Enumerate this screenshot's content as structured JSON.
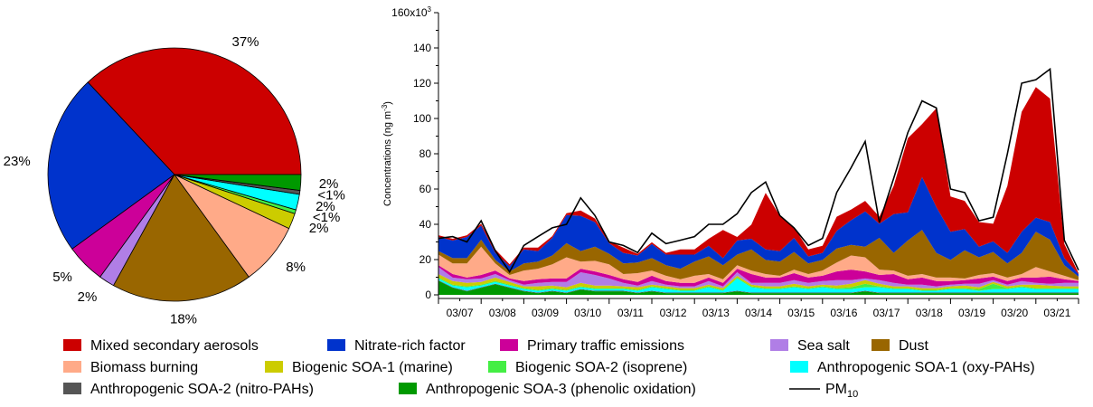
{
  "chart_data": [
    {
      "type": "pie",
      "slices": [
        {
          "name": "Mixed secondary aerosols",
          "value": 37,
          "label": "37%",
          "color": "#cc0000"
        },
        {
          "name": "Nitrate-rich factor",
          "value": 23,
          "label": "23%",
          "color": "#0033cc"
        },
        {
          "name": "Primary traffic emissions",
          "value": 5,
          "label": "5%",
          "color": "#cc0099"
        },
        {
          "name": "Sea salt",
          "value": 2,
          "label": "2%",
          "color": "#b07ee6"
        },
        {
          "name": "Dust",
          "value": 18,
          "label": "18%",
          "color": "#996600"
        },
        {
          "name": "Biomass burning",
          "value": 8,
          "label": "8%",
          "color": "#ffaa88"
        },
        {
          "name": "Biogenic SOA-1 (marine)",
          "value": 2,
          "label": "2%",
          "color": "#cccc00"
        },
        {
          "name": "Biogenic SOA-2 (isoprene)",
          "value": 0.5,
          "label": "<1%",
          "color": "#44ee44"
        },
        {
          "name": "Anthropogenic SOA-1 (oxy-PAHs)",
          "value": 2,
          "label": "2%",
          "color": "#00ffff"
        },
        {
          "name": "Anthropogenic SOA-2 (nitro-PAHs)",
          "value": 0.5,
          "label": "<1%",
          "color": "#555555"
        },
        {
          "name": "Anthropogenic SOA-3 (phenolic oxidation)",
          "value": 2,
          "label": "2%",
          "color": "#009900"
        }
      ]
    },
    {
      "type": "area",
      "stacked": true,
      "ylabel": "Concentrations (ng m",
      "ylabel_sup": "-3",
      "ylabel_end": ")",
      "ylim": [
        0,
        160000
      ],
      "yticks": [
        {
          "value": 0,
          "label": "0"
        },
        {
          "value": 20000,
          "label": "20"
        },
        {
          "value": 40000,
          "label": "40"
        },
        {
          "value": 60000,
          "label": "60"
        },
        {
          "value": 80000,
          "label": "80"
        },
        {
          "value": 100000,
          "label": "100"
        },
        {
          "value": 120000,
          "label": "120"
        },
        {
          "value": 140000,
          "label": "140"
        },
        {
          "value": 160000,
          "label": "160x10",
          "sup": "3"
        }
      ],
      "xlim": [
        0,
        90
      ],
      "xticks": [
        {
          "x": 3,
          "label": "03/07"
        },
        {
          "x": 9,
          "label": "03/08"
        },
        {
          "x": 15,
          "label": "03/09"
        },
        {
          "x": 21,
          "label": "03/10"
        },
        {
          "x": 27,
          "label": "03/11"
        },
        {
          "x": 33,
          "label": "03/12"
        },
        {
          "x": 39,
          "label": "03/13"
        },
        {
          "x": 45,
          "label": "03/14"
        },
        {
          "x": 51,
          "label": "03/15"
        },
        {
          "x": 57,
          "label": "03/16"
        },
        {
          "x": 63,
          "label": "03/17"
        },
        {
          "x": 69,
          "label": "03/18"
        },
        {
          "x": 75,
          "label": "03/19"
        },
        {
          "x": 81,
          "label": "03/20"
        },
        {
          "x": 87,
          "label": "03/21"
        }
      ],
      "x": [
        0,
        2,
        4,
        6,
        8,
        10,
        12,
        14,
        16,
        18,
        20,
        22,
        24,
        26,
        28,
        30,
        32,
        34,
        36,
        38,
        40,
        42,
        44,
        46,
        48,
        50,
        52,
        54,
        56,
        58,
        60,
        62,
        64,
        66,
        68,
        70,
        72,
        74,
        76,
        78,
        80,
        82,
        84,
        86,
        88,
        90
      ],
      "series": [
        {
          "name": "Anthropogenic SOA-3 (phenolic oxidation)",
          "color": "#009900",
          "values": [
            8000,
            4000,
            2000,
            4000,
            6000,
            4000,
            2000,
            1000,
            2000,
            1000,
            3000,
            2000,
            2000,
            2000,
            1000,
            2000,
            1000,
            1000,
            1000,
            1000,
            1000,
            2000,
            1000,
            1000,
            1000,
            1000,
            1000,
            1000,
            1000,
            1000,
            2000,
            1000,
            1000,
            1000,
            1000,
            1000,
            1000,
            1000,
            1000,
            1000,
            1000,
            1000,
            1000,
            1000,
            1000,
            1000
          ]
        },
        {
          "name": "Anthropogenic SOA-2 (nitro-PAHs)",
          "color": "#555555",
          "values": [
            300,
            300,
            300,
            300,
            300,
            300,
            300,
            300,
            300,
            300,
            300,
            300,
            300,
            300,
            300,
            300,
            300,
            300,
            300,
            300,
            300,
            300,
            300,
            300,
            300,
            300,
            300,
            300,
            300,
            300,
            300,
            300,
            300,
            300,
            300,
            300,
            300,
            300,
            300,
            300,
            300,
            300,
            300,
            300,
            300,
            300
          ]
        },
        {
          "name": "Anthropogenic SOA-1 (oxy-PAHs)",
          "color": "#00ffff",
          "values": [
            1000,
            1000,
            2000,
            1000,
            1000,
            1000,
            1000,
            1000,
            1000,
            1000,
            1000,
            1000,
            1000,
            1000,
            1000,
            2000,
            2000,
            1000,
            1000,
            3000,
            1000,
            7000,
            3000,
            2000,
            2000,
            3000,
            2000,
            3000,
            2000,
            2000,
            2000,
            3000,
            2000,
            2000,
            1000,
            1000,
            2000,
            2000,
            1000,
            2000,
            2000,
            3000,
            2000,
            2000,
            2000,
            2000
          ]
        },
        {
          "name": "Biogenic SOA-2 (isoprene)",
          "color": "#44ee44",
          "values": [
            500,
            500,
            500,
            500,
            500,
            500,
            500,
            500,
            500,
            500,
            500,
            500,
            500,
            500,
            500,
            500,
            500,
            500,
            500,
            500,
            500,
            500,
            500,
            500,
            500,
            500,
            500,
            500,
            500,
            1000,
            2000,
            500,
            500,
            500,
            500,
            500,
            500,
            500,
            1000,
            3000,
            500,
            500,
            500,
            500,
            500,
            500
          ]
        },
        {
          "name": "Biogenic SOA-1 (marine)",
          "color": "#cccc00",
          "values": [
            2000,
            2000,
            2000,
            1500,
            2000,
            1500,
            1000,
            2000,
            1500,
            1500,
            2000,
            1500,
            1500,
            1000,
            1500,
            1000,
            1000,
            1000,
            1000,
            1000,
            1000,
            1000,
            1000,
            1000,
            1000,
            1500,
            1000,
            1000,
            1500,
            2000,
            2000,
            1500,
            1000,
            1000,
            1000,
            1000,
            1000,
            1500,
            1000,
            1000,
            1000,
            1000,
            2000,
            1500,
            1000,
            1000
          ]
        },
        {
          "name": "Sea salt",
          "color": "#b07ee6",
          "values": [
            4000,
            2000,
            2000,
            2000,
            2000,
            1000,
            1000,
            2000,
            2000,
            3000,
            6000,
            6000,
            4000,
            2000,
            1000,
            2000,
            1000,
            1000,
            1000,
            2000,
            1000,
            2000,
            1000,
            2000,
            2000,
            2000,
            2000,
            2000,
            3000,
            2000,
            1000,
            2000,
            2000,
            1000,
            2000,
            1000,
            1000,
            1000,
            2000,
            1000,
            1000,
            2000,
            1000,
            1000,
            2000,
            2000
          ]
        },
        {
          "name": "Primary traffic emissions",
          "color": "#cc0099",
          "values": [
            1000,
            2000,
            1000,
            2000,
            2000,
            1000,
            2000,
            2000,
            2000,
            2000,
            2000,
            2000,
            2000,
            2000,
            2000,
            3000,
            2000,
            2000,
            2000,
            2000,
            2000,
            2000,
            5000,
            3000,
            3000,
            4000,
            3000,
            3000,
            5000,
            6000,
            4000,
            3000,
            5000,
            3000,
            4000,
            3000,
            2000,
            2000,
            3000,
            2000,
            2000,
            2000,
            3000,
            4000,
            2000,
            1000
          ]
        },
        {
          "name": "Biomass burning",
          "color": "#ffaa88",
          "values": [
            6000,
            6000,
            8000,
            16000,
            4000,
            2000,
            6000,
            6000,
            8000,
            12000,
            4000,
            6000,
            6000,
            3000,
            5000,
            3000,
            3000,
            2000,
            4000,
            2000,
            2000,
            2000,
            2000,
            2000,
            1000,
            2000,
            2000,
            3000,
            5000,
            8000,
            8000,
            3000,
            2000,
            2000,
            2000,
            2000,
            2000,
            1000,
            2000,
            2000,
            2000,
            2000,
            6000,
            3000,
            2000,
            500
          ]
        },
        {
          "name": "Dust",
          "color": "#996600",
          "values": [
            2000,
            3000,
            3000,
            4000,
            2000,
            2000,
            4000,
            4000,
            5000,
            8000,
            6000,
            8000,
            6000,
            6000,
            6000,
            7000,
            6000,
            6000,
            8000,
            10000,
            8000,
            6000,
            12000,
            8000,
            8000,
            10000,
            6000,
            6000,
            8000,
            6000,
            6000,
            18000,
            10000,
            20000,
            25000,
            14000,
            10000,
            16000,
            10000,
            12000,
            8000,
            12000,
            20000,
            18000,
            6000,
            2000
          ]
        },
        {
          "name": "Nitrate-rich factor",
          "color": "#0033cc",
          "values": [
            8000,
            10000,
            12000,
            8000,
            4000,
            3000,
            8000,
            6000,
            10000,
            16000,
            20000,
            14000,
            6000,
            6000,
            4000,
            8000,
            6000,
            8000,
            4000,
            6000,
            4000,
            8000,
            6000,
            6000,
            6000,
            8000,
            4000,
            4000,
            10000,
            14000,
            20000,
            8000,
            22000,
            16000,
            30000,
            26000,
            16000,
            12000,
            6000,
            6000,
            6000,
            12000,
            8000,
            10000,
            4000,
            1500
          ]
        },
        {
          "name": "Mixed secondary aerosols",
          "color": "#cc0000",
          "values": [
            1000,
            1000,
            1000,
            1000,
            2000,
            1000,
            1000,
            2000,
            1000,
            1000,
            3000,
            2000,
            1000,
            3000,
            1000,
            1000,
            1000,
            3000,
            3000,
            4000,
            16000,
            2000,
            8000,
            32000,
            20000,
            6000,
            4000,
            4000,
            8000,
            6000,
            6000,
            4000,
            16000,
            42000,
            30000,
            56000,
            20000,
            16000,
            14000,
            10000,
            38000,
            68000,
            74000,
            70000,
            8000,
            500
          ]
        }
      ],
      "pm10": {
        "name": "PM",
        "sub": "10",
        "color": "#000000",
        "values": [
          32000,
          33000,
          30000,
          42000,
          25000,
          13000,
          28000,
          33000,
          38000,
          40000,
          55000,
          45000,
          30000,
          28000,
          24000,
          35000,
          29000,
          31000,
          33000,
          40000,
          40000,
          46000,
          58000,
          64000,
          45000,
          38000,
          28000,
          32000,
          58000,
          72000,
          87000,
          41000,
          66000,
          92000,
          110000,
          106000,
          60000,
          58000,
          42000,
          44000,
          80000,
          120000,
          122000,
          128000,
          31000,
          14000
        ]
      }
    }
  ]
}
